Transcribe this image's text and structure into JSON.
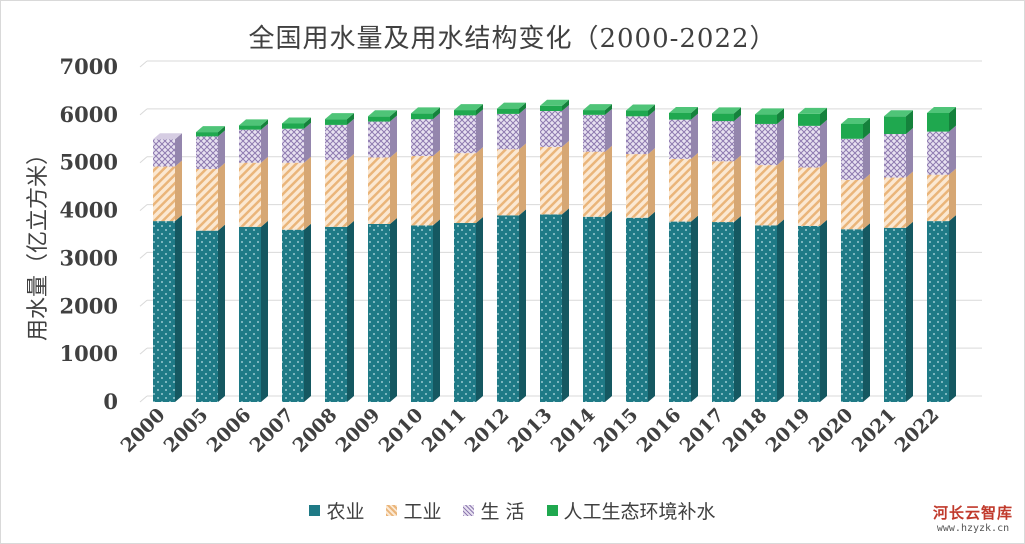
{
  "chart_data": {
    "type": "bar",
    "stacked": true,
    "title": "全国用水量及用水结构变化（2000-2022）",
    "ylabel": "用水量（亿立方米）",
    "xlabel": "",
    "ylim": [
      0,
      7000
    ],
    "yticks": [
      0,
      1000,
      2000,
      3000,
      4000,
      5000,
      6000,
      7000
    ],
    "grid": true,
    "legend_position": "bottom",
    "categories": [
      "2000",
      "2005",
      "2006",
      "2007",
      "2008",
      "2009",
      "2010",
      "2011",
      "2012",
      "2013",
      "2014",
      "2015",
      "2016",
      "2017",
      "2018",
      "2019",
      "2020",
      "2021",
      "2022"
    ],
    "series": [
      {
        "name": "农业",
        "color": "#1f7a86",
        "values": [
          3780,
          3580,
          3660,
          3600,
          3660,
          3720,
          3690,
          3740,
          3900,
          3920,
          3870,
          3850,
          3770,
          3760,
          3690,
          3680,
          3610,
          3640,
          3780
        ]
      },
      {
        "name": "工业",
        "color": "#f0c89a",
        "values": [
          1140,
          1290,
          1340,
          1400,
          1400,
          1390,
          1450,
          1460,
          1380,
          1410,
          1360,
          1330,
          1310,
          1270,
          1260,
          1220,
          1030,
          1050,
          970
        ]
      },
      {
        "name": "生 活",
        "color": "#b9a9cf",
        "values": [
          570,
          680,
          690,
          710,
          730,
          750,
          770,
          790,
          740,
          750,
          770,
          790,
          820,
          840,
          860,
          870,
          860,
          910,
          900
        ]
      },
      {
        "name": "人工生态环境补水",
        "color": "#1fa84f",
        "values": [
          0,
          90,
          90,
          110,
          120,
          110,
          120,
          110,
          110,
          110,
          100,
          120,
          140,
          160,
          200,
          250,
          310,
          370,
          390
        ]
      }
    ]
  },
  "watermark": {
    "name": "河长云智库",
    "url": "www.hzyzk.cn"
  }
}
